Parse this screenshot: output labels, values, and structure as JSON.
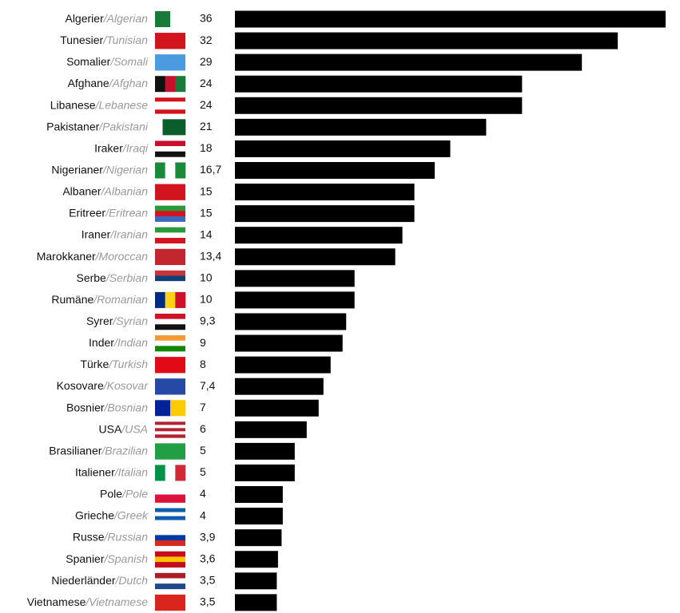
{
  "chart_data": {
    "type": "bar",
    "orientation": "horizontal",
    "categories": [
      "Algerier",
      "Tunesier",
      "Somalier",
      "Afghane",
      "Libanese",
      "Pakistaner",
      "Iraker",
      "Nigerianer",
      "Albaner",
      "Eritreer",
      "Iraner",
      "Marokkaner",
      "Serbe",
      "Rumäne",
      "Syrer",
      "Inder",
      "Türke",
      "Kosovare",
      "Bosnier",
      "USA",
      "Brasilianer",
      "Italiener",
      "Pole",
      "Grieche",
      "Russe",
      "Spanier",
      "Niederländer",
      "Vietnamese"
    ],
    "category_translations": [
      "/Algerian",
      "/Tunisian",
      "/Somali",
      "/Afghan",
      "/Lebanese",
      "/Pakistani",
      "/Iraqi",
      "/Nigerian",
      "/Albanian",
      "/Eritrean",
      "/Iranian",
      "/Moroccan",
      "/Serbian",
      "/Romanian",
      "/Syrian",
      "/Indian",
      "/Turkish",
      "/Kosovar",
      "/Bosnian",
      "/USA",
      "/Brazilian",
      "/Italian",
      "/Pole",
      "/Greek",
      "/Russian",
      "/Spanish",
      "/Dutch",
      "/Vietnamese"
    ],
    "values": [
      36,
      32,
      29,
      24,
      24,
      21,
      18,
      16.7,
      15,
      15,
      14,
      13.4,
      10,
      10,
      9.3,
      9,
      8,
      7.4,
      7,
      6,
      5,
      5,
      4,
      4,
      3.9,
      3.6,
      3.5,
      3.5
    ],
    "value_labels": [
      "36",
      "32",
      "29",
      "24",
      "24",
      "21",
      "18",
      "16,7",
      "15",
      "15",
      "14",
      "13,4",
      "10",
      "10",
      "9,3",
      "9",
      "8",
      "7,4",
      "7",
      "6",
      "5",
      "5",
      "4",
      "4",
      "3,9",
      "3,6",
      "3,5",
      "3,5"
    ],
    "color": "#000000",
    "xlim": [
      0,
      36
    ]
  }
}
